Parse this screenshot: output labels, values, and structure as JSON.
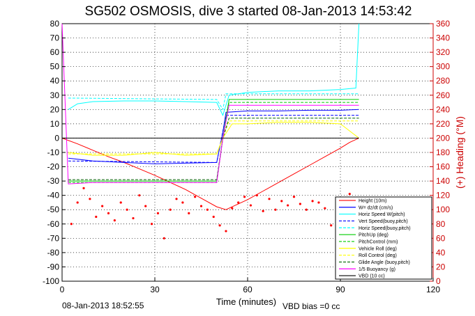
{
  "chart_data": {
    "type": "line",
    "title": "SG502 OSMOSIS, dive 3 started 08-Jan-2013 14:53:42",
    "xlabel": "Time (minutes)",
    "ylabel": "",
    "y2label": "(+) Heading (°M)",
    "xlim": [
      0,
      120
    ],
    "ylim": [
      -100,
      80
    ],
    "y2lim": [
      0,
      360
    ],
    "x_ticks": [
      "0",
      "30",
      "60",
      "90",
      "120"
    ],
    "y_ticks": [
      "80",
      "70",
      "60",
      "50",
      "40",
      "30",
      "20",
      "10",
      "0",
      "-10",
      "-20",
      "-30",
      "-40",
      "-50",
      "-60",
      "-70",
      "-80",
      "-90",
      "-100"
    ],
    "y2_ticks": [
      "360",
      "340",
      "320",
      "300",
      "280",
      "260",
      "240",
      "220",
      "200",
      "180",
      "160",
      "140",
      "120",
      "100",
      "80",
      "60",
      "40",
      "20",
      "0"
    ],
    "grid": true,
    "legend_position": "bottom-right",
    "footer_left": "08-Jan-2013 18:52:55",
    "footer_right": "VBD bias =0 cc",
    "colors": {
      "height": "#ff0000",
      "w": "#0000ff",
      "horiz_speed": "#00ffff",
      "pitch": "#00cc00",
      "roll": "#ffff00",
      "glide": "#006400",
      "buoyancy": "#ff00ff",
      "vbd": "#000000",
      "heading_axis": "#cc0000"
    },
    "series": [
      {
        "name": "Height (10m)",
        "key": "height",
        "style": "line",
        "x": [
          0,
          5,
          10,
          15,
          20,
          25,
          30,
          35,
          40,
          45,
          50,
          53,
          55,
          60,
          65,
          70,
          75,
          80,
          85,
          90,
          93,
          96
        ],
        "values": [
          0,
          -4,
          -8.5,
          -13,
          -17,
          -21.5,
          -26,
          -31,
          -36,
          -42,
          -48,
          -50,
          -48,
          -43,
          -37,
          -31,
          -25,
          -19,
          -13,
          -7,
          -3,
          0
        ]
      },
      {
        "name": "W= dz/dt (cm/s)",
        "key": "w",
        "style": "line",
        "x": [
          2,
          10,
          20,
          30,
          40,
          50,
          52,
          53,
          60,
          70,
          80,
          90,
          96
        ],
        "values": [
          -14,
          -16,
          -17,
          -18,
          -17.5,
          -17,
          4,
          18,
          19,
          19,
          19.5,
          19.5,
          20
        ]
      },
      {
        "name": "Horiz Speed W(pitch)",
        "key": "horiz_speed",
        "style": "line",
        "x": [
          2,
          5,
          10,
          20,
          30,
          40,
          50,
          52,
          54,
          60,
          70,
          80,
          90,
          95,
          96
        ],
        "values": [
          20,
          24,
          25.5,
          26,
          26,
          25.5,
          25,
          16,
          30,
          32,
          33,
          33,
          34,
          35,
          80
        ]
      },
      {
        "name": "Vert Speed(buoy,pitch)",
        "key": "w",
        "style": "dash",
        "x": [
          2,
          50,
          52,
          53,
          96
        ],
        "values": [
          -16,
          -17,
          5,
          16,
          16
        ]
      },
      {
        "name": "Horiz Speed(buoy,pitch)",
        "key": "horiz_speed",
        "style": "dash",
        "x": [
          2,
          50,
          52,
          53,
          96
        ],
        "values": [
          28,
          27,
          20,
          31,
          31
        ]
      },
      {
        "name": "PitchUp (deg)",
        "key": "pitch",
        "style": "line",
        "x": [
          2,
          50,
          52,
          54,
          96
        ],
        "values": [
          -30,
          -30,
          0,
          27,
          27
        ]
      },
      {
        "name": "PitchControl (mm)",
        "key": "pitch",
        "style": "dash",
        "x": [
          2,
          50,
          52,
          54,
          96
        ],
        "values": [
          -31,
          -31,
          0,
          25,
          25
        ]
      },
      {
        "name": "Vehicle Roll (deg)",
        "key": "roll",
        "style": "line",
        "x": [
          2,
          10,
          20,
          30,
          40,
          50,
          52,
          55,
          60,
          70,
          80,
          90,
          96
        ],
        "values": [
          -10,
          -12,
          -12,
          -10,
          -12,
          -11,
          0,
          10,
          10,
          11,
          11,
          10,
          0
        ]
      },
      {
        "name": "Roll Control (deg)",
        "key": "roll",
        "style": "dash",
        "x": [
          2,
          50,
          52,
          54,
          96
        ],
        "values": [
          -11,
          -11,
          0,
          12,
          12
        ]
      },
      {
        "name": "Glide Angle (buoy,pitch)",
        "key": "glide",
        "style": "dash",
        "x": [
          2,
          50,
          52,
          54,
          96
        ],
        "values": [
          -29,
          -29,
          0,
          14,
          14
        ]
      },
      {
        "name": "1/5 Buoyancy (g)",
        "key": "buoyancy",
        "style": "line",
        "x": [
          0,
          2,
          10,
          30,
          50,
          52,
          54,
          96
        ],
        "values": [
          80,
          -32,
          -31,
          -31,
          -31,
          0,
          23,
          23
        ]
      },
      {
        "name": "VBD (10 cc)",
        "key": "vbd",
        "style": "line",
        "x": [
          0,
          96
        ],
        "values": [
          0,
          0
        ]
      },
      {
        "name": "Heading",
        "key": "height",
        "style": "dots",
        "x": [
          3,
          5,
          7,
          9,
          11,
          13,
          15,
          17,
          19,
          21,
          23,
          25,
          27,
          29,
          31,
          33,
          35,
          37,
          39,
          41,
          43,
          45,
          47,
          49,
          51,
          53,
          55,
          57,
          59,
          61,
          63,
          65,
          67,
          69,
          71,
          73,
          75,
          77,
          79,
          81,
          83,
          85,
          87,
          89,
          91,
          93
        ],
        "values": [
          80,
          110,
          130,
          115,
          90,
          105,
          95,
          85,
          110,
          100,
          88,
          120,
          105,
          80,
          95,
          60,
          100,
          115,
          110,
          95,
          118,
          105,
          100,
          90,
          78,
          70,
          102,
          110,
          118,
          106,
          120,
          98,
          115,
          100,
          112,
          106,
          118,
          108,
          100,
          112,
          110,
          102,
          78,
          100,
          112,
          122
        ]
      }
    ]
  }
}
